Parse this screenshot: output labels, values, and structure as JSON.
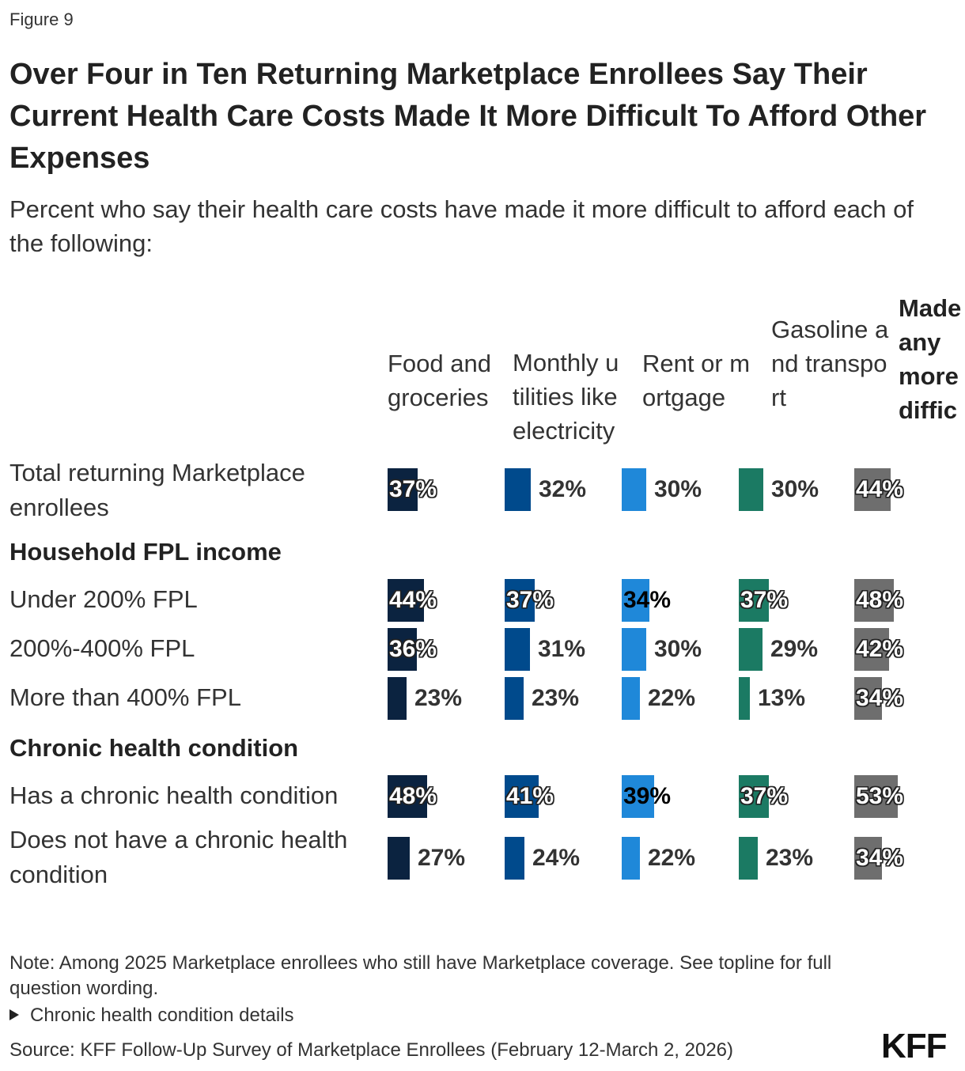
{
  "figure_label": "Figure 9",
  "title": "Over Four in Ten Returning Marketplace Enrollees Say Their Current Health Care Costs Made It More Difficult To Afford Other Expenses",
  "subtitle": "Percent who say their health care costs have made it more difficult to afford each of the following:",
  "note": "Note: Among 2025 Marketplace enrollees who still have Marketplace coverage. See topline for full question wording.",
  "details_label": "Chronic health condition details",
  "source": "Source: KFF Follow-Up Survey of Marketplace Enrollees (February 12-March 2, 2026)",
  "logo_text": "KFF",
  "colors": {
    "food": "#0b2340",
    "utilities": "#004a8c",
    "rent": "#1f88d9",
    "gasoline": "#1b7a63",
    "any": "#6e6e6e"
  },
  "chart_data": {
    "type": "table",
    "columns": [
      {
        "key": "food",
        "label": "Food and groceries",
        "color": "#0b2340",
        "bold": false
      },
      {
        "key": "utilities",
        "label": "Monthly utilities like electricity",
        "color": "#004a8c",
        "bold": false
      },
      {
        "key": "rent",
        "label": "Rent or mortgage",
        "color": "#1f88d9",
        "bold": false
      },
      {
        "key": "gasoline",
        "label": "Gasoline and transport",
        "color": "#1b7a63",
        "bold": false
      },
      {
        "key": "any",
        "label": "Made any more difficult",
        "color": "#6e6e6e",
        "bold": true
      }
    ],
    "rows": [
      {
        "type": "data",
        "label": "Total returning Marketplace enrollees",
        "values": [
          37,
          32,
          30,
          30,
          44
        ]
      },
      {
        "type": "group",
        "label": "Household FPL income"
      },
      {
        "type": "data",
        "label": "Under 200% FPL",
        "values": [
          44,
          37,
          34,
          37,
          48
        ]
      },
      {
        "type": "data",
        "label": "200%-400% FPL",
        "values": [
          36,
          31,
          30,
          29,
          42
        ]
      },
      {
        "type": "data",
        "label": "More than 400% FPL",
        "values": [
          23,
          23,
          22,
          13,
          34
        ]
      },
      {
        "type": "group",
        "label": "Chronic health condition"
      },
      {
        "type": "data",
        "label": "Has a chronic health condition",
        "values": [
          48,
          41,
          39,
          37,
          53
        ]
      },
      {
        "type": "data",
        "label": "Does not have a chronic health condition",
        "values": [
          27,
          24,
          22,
          23,
          34
        ]
      }
    ],
    "value_suffix": "%"
  }
}
